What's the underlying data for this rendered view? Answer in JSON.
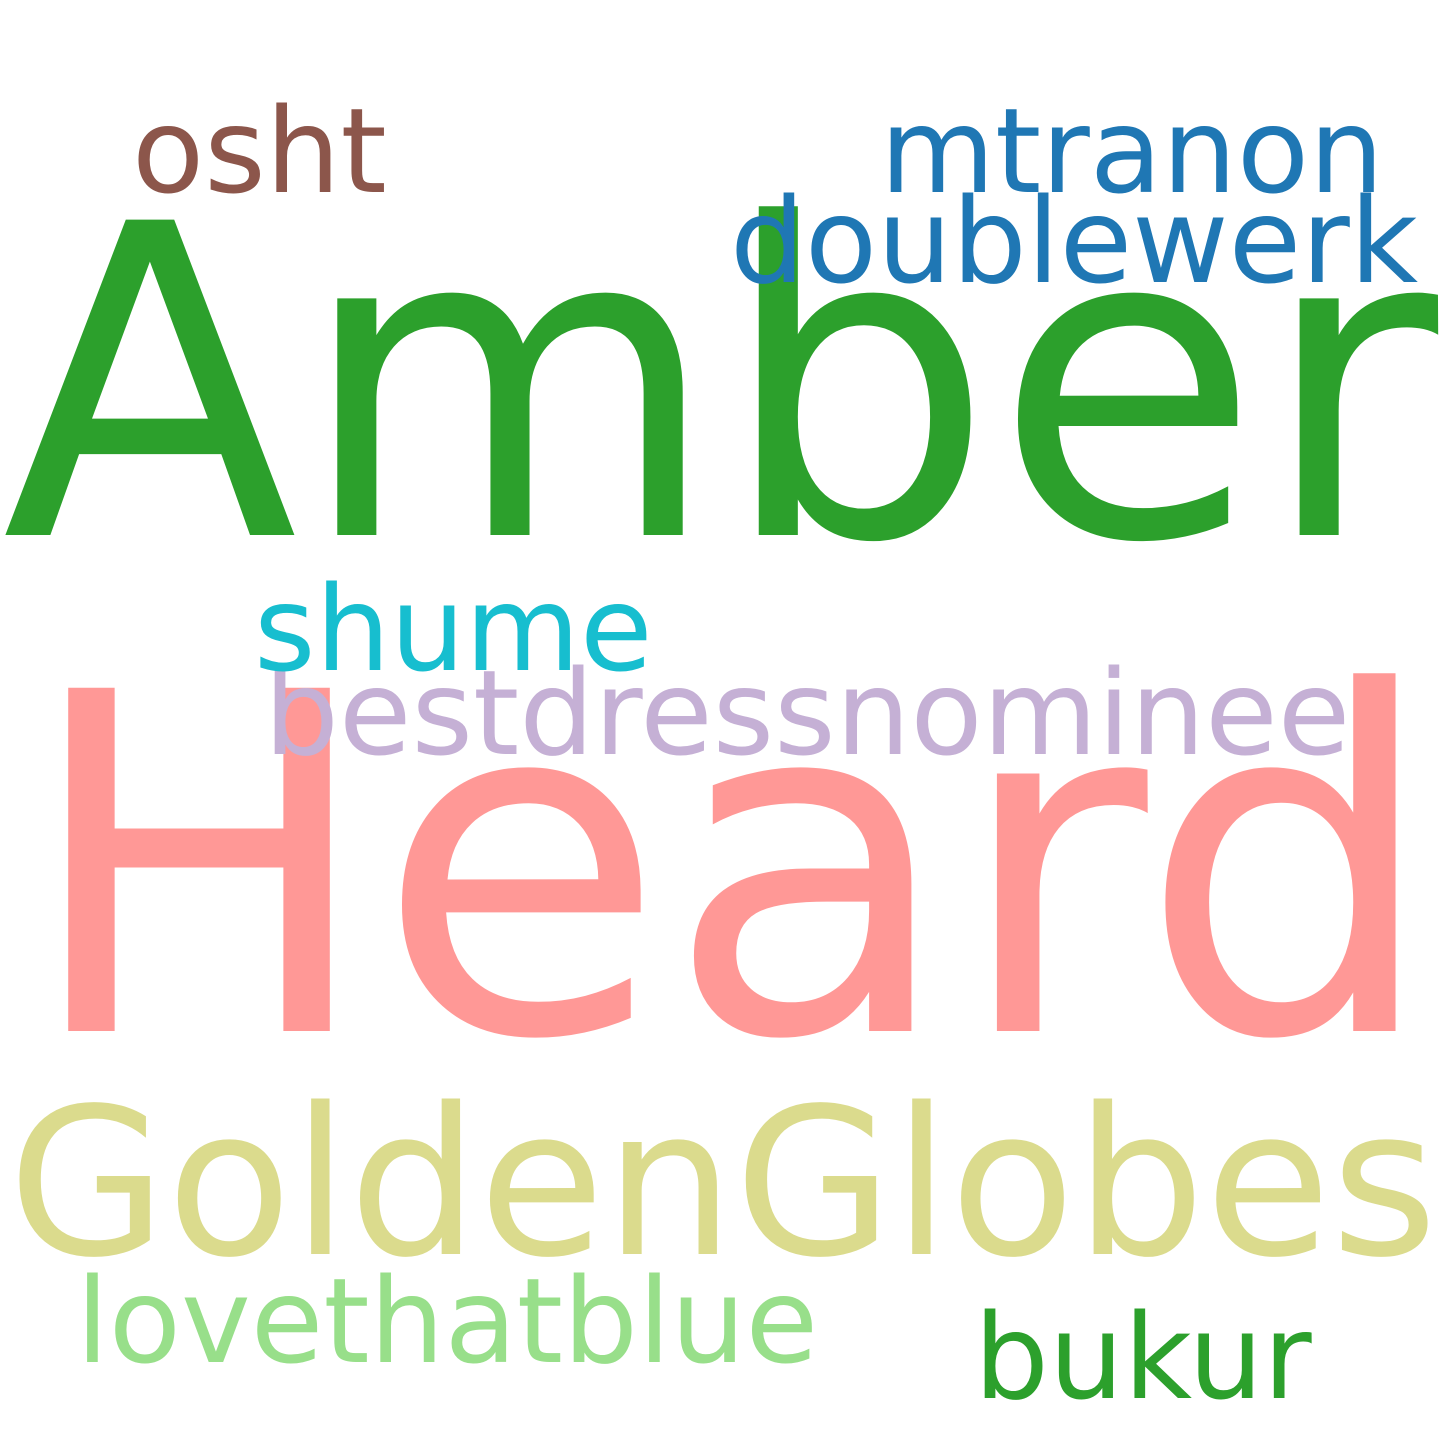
{
  "words": [
    {
      "text": "Amber",
      "color": "#2ca02c"
    },
    {
      "text": "Heard",
      "color": "#ff9896"
    },
    {
      "text": "GoldenGlobes",
      "color": "#dbdb8d"
    },
    {
      "text": "bestdressnominee",
      "color": "#c5b0d5"
    },
    {
      "text": "mtranon",
      "color": "#1f77b4"
    },
    {
      "text": "doublewerk",
      "color": "#1f77b4"
    },
    {
      "text": "osht",
      "color": "#8c564b"
    },
    {
      "text": "shume",
      "color": "#17becf"
    },
    {
      "text": "lovethatblue",
      "color": "#98df8a"
    },
    {
      "text": "bukur",
      "color": "#2ca02c"
    }
  ]
}
